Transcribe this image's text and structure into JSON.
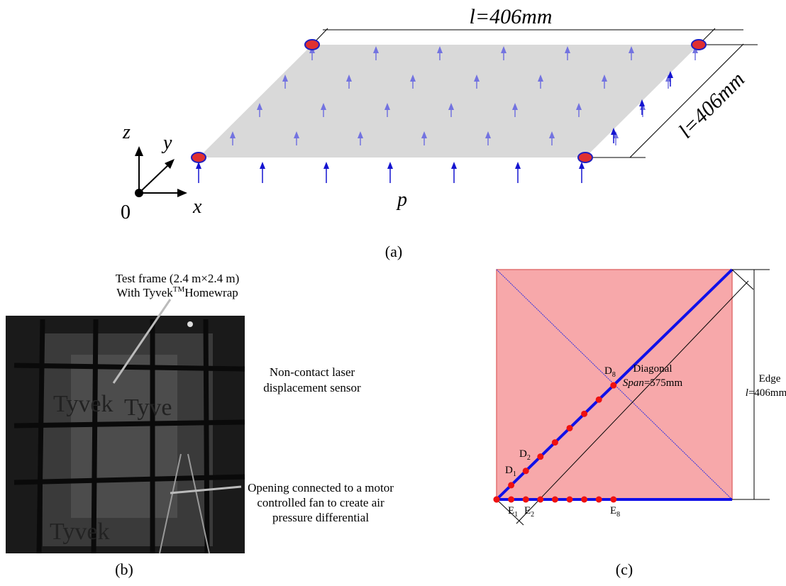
{
  "panel_a": {
    "top_dimension": "l=406mm",
    "side_dimension": "l=406mm",
    "axis_z": "z",
    "axis_y": "y",
    "axis_x": "x",
    "origin": "0",
    "pressure": "p",
    "caption": "(a)"
  },
  "panel_b": {
    "frame_label_line1": "Test frame (2.4 m×2.4 m)",
    "frame_label_line2": "With Tyvek",
    "frame_label_tm": "TM",
    "frame_label_line2_end": "Homewrap",
    "sensor_label": [
      "Non-contact laser",
      "displacement sensor"
    ],
    "opening_label": [
      "Opening connected to a motor",
      "controlled fan to create air",
      "pressure differential"
    ],
    "photo_text": [
      "Tyvek",
      "Tyve",
      "Tyvek"
    ],
    "caption": "(b)"
  },
  "panel_c": {
    "points": [
      {
        "base": "D",
        "sub": "8"
      },
      {
        "base": "D",
        "sub": "2"
      },
      {
        "base": "D",
        "sub": "1"
      },
      {
        "base": "E",
        "sub": "1"
      },
      {
        "base": "E",
        "sub": "2"
      },
      {
        "base": "E",
        "sub": "8"
      }
    ],
    "diagonal_label": "Diagonal",
    "span_var": "Span",
    "span_value": "=575mm",
    "edge_label": "Edge",
    "edge_var": "l",
    "edge_value": "=406mm",
    "caption": "(c)"
  }
}
